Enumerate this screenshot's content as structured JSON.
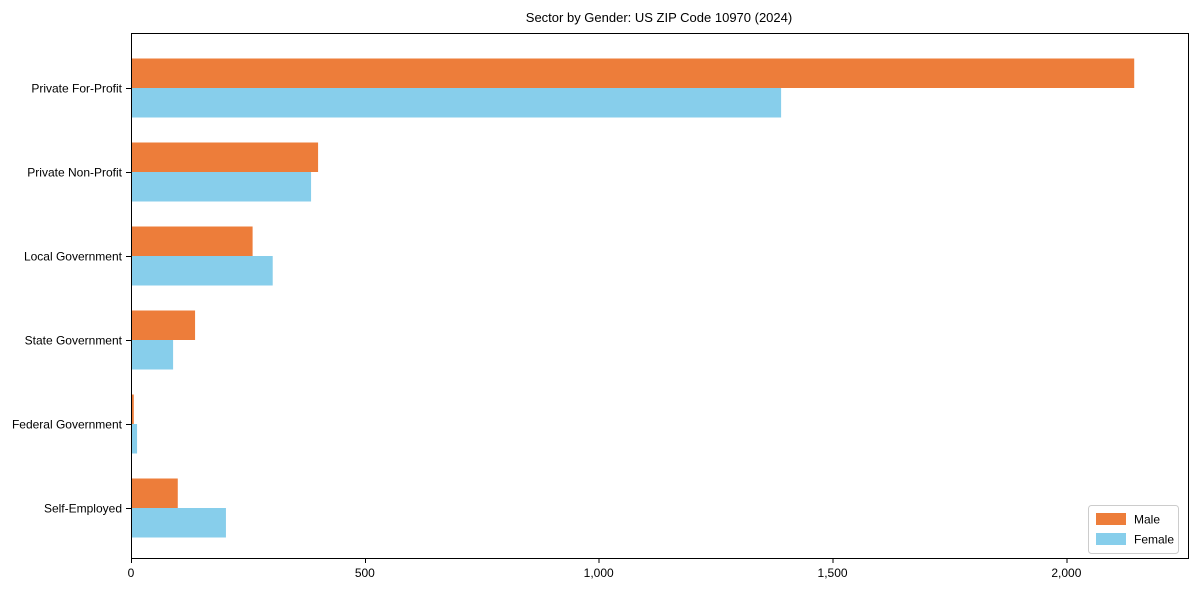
{
  "chart_data": {
    "type": "bar",
    "orientation": "horizontal",
    "title": "Sector by Gender: US ZIP Code 10970 (2024)",
    "categories": [
      "Private For-Profit",
      "Private Non-Profit",
      "Local Government",
      "State Government",
      "Federal Government",
      "Self-Employed"
    ],
    "series": [
      {
        "name": "Male",
        "color": "#ED7D3A",
        "values": [
          2145,
          400,
          260,
          137,
          6,
          100
        ]
      },
      {
        "name": "Female",
        "color": "#87CEEB",
        "values": [
          1390,
          385,
          303,
          90,
          13,
          203
        ]
      }
    ],
    "xlabel": "",
    "ylabel": "",
    "xlim": [
      0,
      2260
    ],
    "xticks": [
      0,
      500,
      1000,
      1500,
      2000
    ],
    "xtick_labels": [
      "0",
      "500",
      "1,000",
      "1,500",
      "2,000"
    ],
    "grid": false,
    "legend": {
      "position": "lower right",
      "entries": [
        "Male",
        "Female"
      ],
      "border_color": "#cccccc",
      "background": "#ffffff"
    },
    "frame_color": "#000000",
    "background": "#ffffff"
  }
}
